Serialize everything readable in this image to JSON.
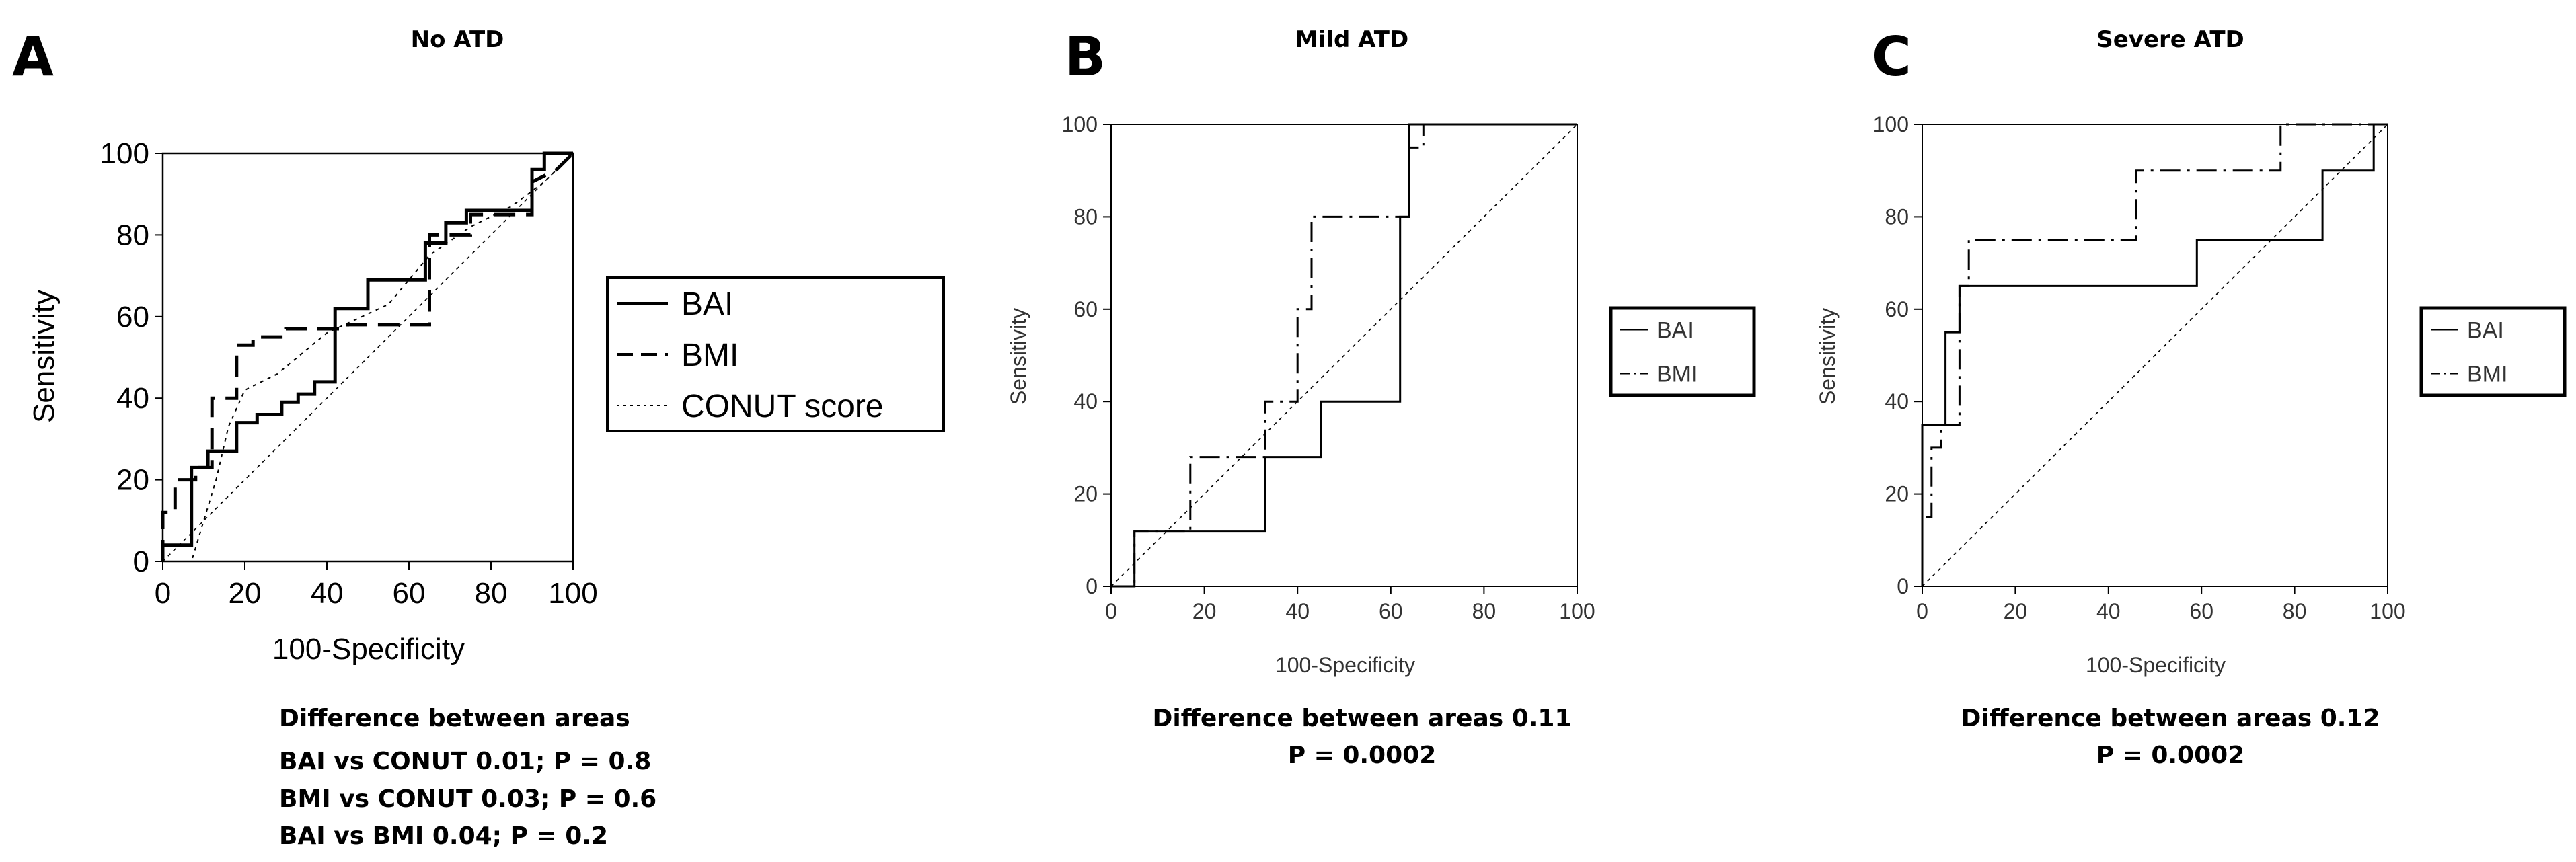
{
  "chart_data": [
    {
      "panel": "A",
      "title": "No ATD",
      "type": "line",
      "xlabel": "100-Specificity",
      "ylabel": "Sensitivity",
      "xlim": [
        0,
        100
      ],
      "ylim": [
        0,
        100
      ],
      "xticks": [
        0,
        20,
        40,
        60,
        80,
        100
      ],
      "yticks": [
        0,
        20,
        40,
        60,
        80,
        100
      ],
      "legend": "right",
      "series": [
        {
          "name": "BAI",
          "style": "solid",
          "x": [
            0,
            0,
            7,
            7,
            11,
            11,
            18,
            18,
            23,
            23,
            29,
            29,
            33,
            33,
            37,
            37,
            42,
            42,
            50,
            50,
            64,
            64,
            69,
            69,
            74,
            74,
            90,
            90,
            93,
            93,
            100
          ],
          "y": [
            0,
            4,
            4,
            23,
            23,
            27,
            27,
            34,
            34,
            36,
            36,
            39,
            39,
            41,
            41,
            44,
            44,
            62,
            62,
            69,
            69,
            78,
            78,
            83,
            83,
            86,
            86,
            96,
            96,
            100,
            100
          ]
        },
        {
          "name": "BMI",
          "style": "dashed",
          "x": [
            0,
            0,
            3,
            3,
            8,
            8,
            12,
            12,
            18,
            18,
            22,
            22,
            30,
            30,
            45,
            45,
            65,
            65,
            75,
            75,
            90,
            90,
            96,
            100
          ],
          "y": [
            0,
            12,
            12,
            20,
            20,
            23,
            23,
            40,
            40,
            53,
            53,
            55,
            55,
            57,
            57,
            58,
            58,
            80,
            80,
            85,
            85,
            93,
            96,
            100
          ]
        },
        {
          "name": "CONUT score",
          "style": "dotted",
          "x": [
            0,
            7,
            10,
            13,
            16,
            20,
            28,
            40,
            55,
            65,
            75,
            85,
            93,
            100
          ],
          "y": [
            0,
            0,
            10,
            20,
            33,
            42,
            46,
            56,
            63,
            75,
            82,
            87,
            93,
            100
          ]
        }
      ],
      "annotations": [
        "Difference between areas",
        "BAI vs CONUT  0.01; P = 0.8",
        "BMI vs CONUT  0.03; P = 0.6",
        "BAI vs BMI  0.04; P = 0.2"
      ]
    },
    {
      "panel": "B",
      "title": "Mild ATD",
      "type": "line",
      "xlabel": "100-Specificity",
      "ylabel": "Sensitivity",
      "xlim": [
        0,
        100
      ],
      "ylim": [
        0,
        100
      ],
      "xticks": [
        0,
        20,
        40,
        60,
        80,
        100
      ],
      "yticks": [
        0,
        20,
        40,
        60,
        80,
        100
      ],
      "legend": "right",
      "series": [
        {
          "name": "BAI",
          "style": "solid",
          "x": [
            0,
            5,
            5,
            33,
            33,
            45,
            45,
            62,
            62,
            64,
            64,
            100
          ],
          "y": [
            0,
            0,
            12,
            12,
            28,
            28,
            40,
            40,
            80,
            80,
            100,
            100
          ]
        },
        {
          "name": "BMI",
          "style": "dashdot",
          "x": [
            0,
            5,
            5,
            17,
            17,
            33,
            33,
            40,
            40,
            43,
            43,
            45,
            45,
            64,
            64,
            67,
            67,
            100
          ],
          "y": [
            0,
            0,
            12,
            12,
            28,
            28,
            40,
            40,
            60,
            60,
            80,
            80,
            80,
            80,
            95,
            95,
            100,
            100
          ]
        }
      ],
      "annotations": [
        "Difference between areas  0.11",
        "P = 0.0002"
      ]
    },
    {
      "panel": "C",
      "title": "Severe ATD",
      "type": "line",
      "xlabel": "100-Specificity",
      "ylabel": "Sensitivity",
      "xlim": [
        0,
        100
      ],
      "ylim": [
        0,
        100
      ],
      "xticks": [
        0,
        20,
        40,
        60,
        80,
        100
      ],
      "yticks": [
        0,
        20,
        40,
        60,
        80,
        100
      ],
      "legend": "right",
      "series": [
        {
          "name": "BAI",
          "style": "solid",
          "x": [
            0,
            0,
            5,
            5,
            8,
            8,
            14,
            14,
            59,
            59,
            86,
            86,
            97,
            97,
            100
          ],
          "y": [
            0,
            35,
            35,
            55,
            55,
            65,
            65,
            65,
            65,
            75,
            75,
            90,
            90,
            100,
            100
          ]
        },
        {
          "name": "BMI",
          "style": "dashdot",
          "x": [
            0,
            0,
            2,
            2,
            4,
            4,
            8,
            8,
            10,
            10,
            46,
            46,
            77,
            77,
            86,
            86,
            100
          ],
          "y": [
            0,
            15,
            15,
            30,
            30,
            35,
            35,
            65,
            65,
            75,
            75,
            90,
            90,
            100,
            100,
            100,
            100
          ]
        }
      ],
      "annotations": [
        "Difference between areas  0.12",
        "P = 0.0002"
      ]
    }
  ]
}
